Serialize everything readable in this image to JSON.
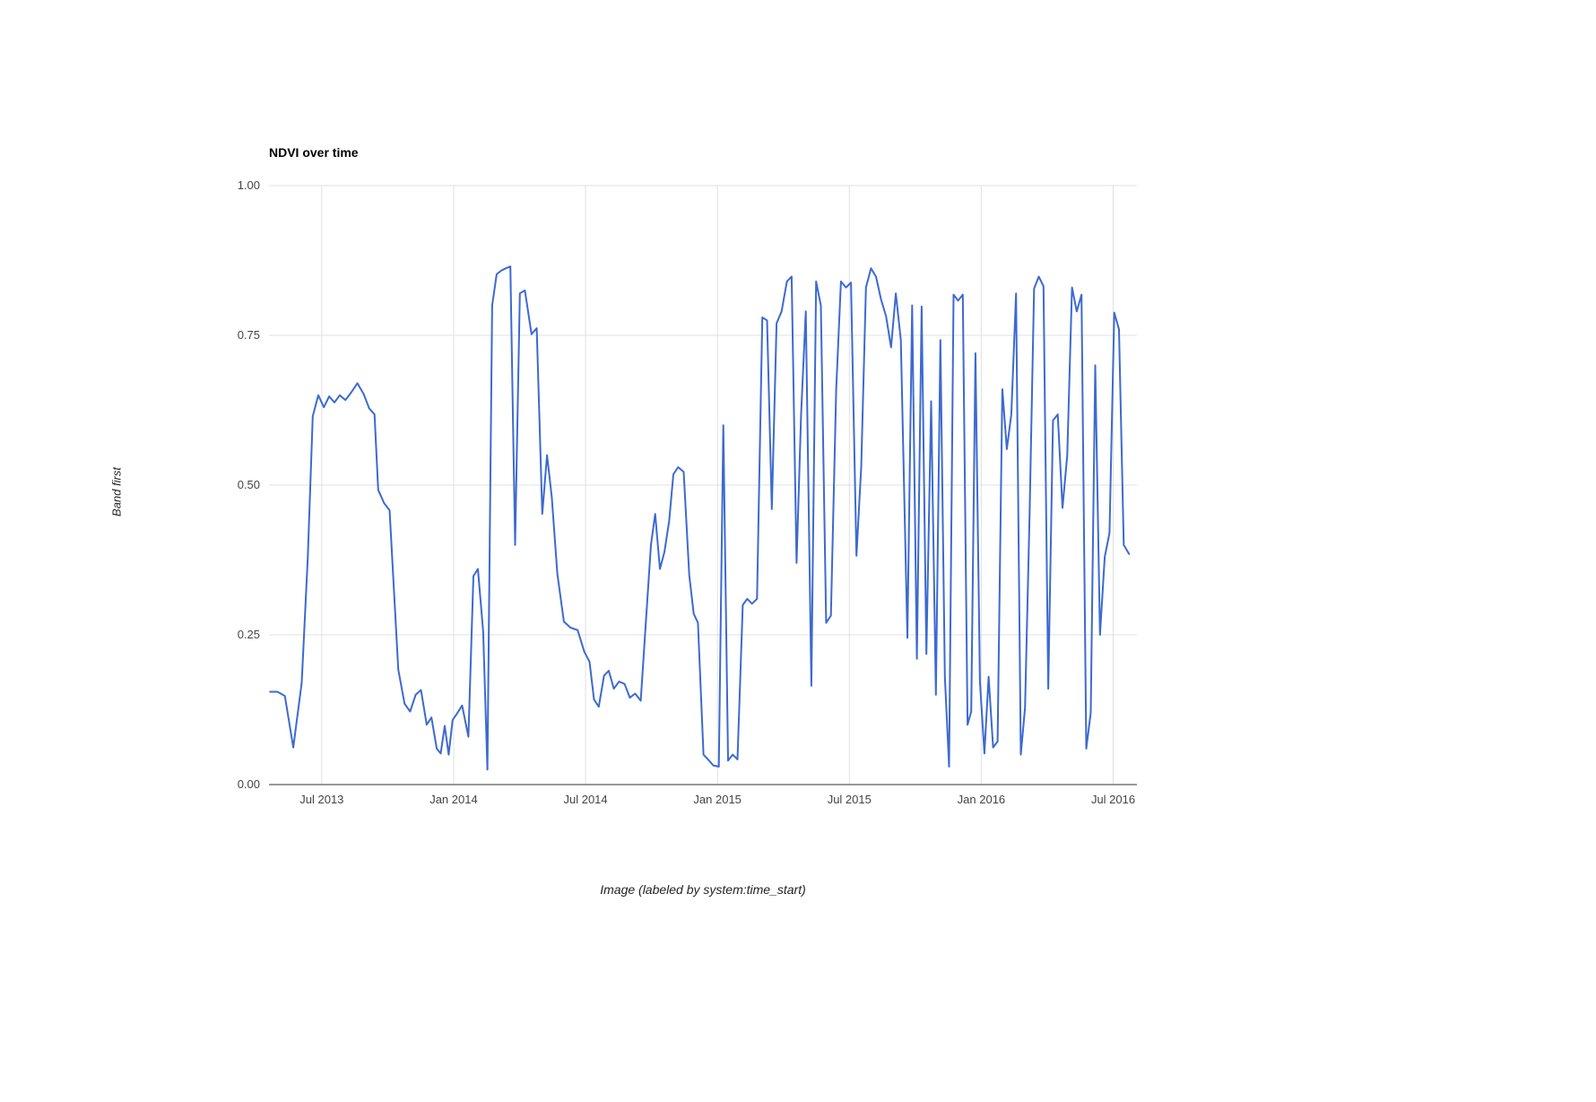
{
  "header": {
    "title": "NDVI over time"
  },
  "axes": {
    "y_title": "Band first",
    "x_title": "Image (labeled by system:time_start)"
  },
  "colors": {
    "line": "#3d6ad0",
    "grid": "#e0e0e0",
    "baseline": "#333333",
    "tick_text": "#444444",
    "background": "#ffffff"
  },
  "chart_data": {
    "type": "line",
    "title": "NDVI over time",
    "xlabel": "Image (labeled by system:time_start)",
    "ylabel": "Band first",
    "legend": "none",
    "grid": true,
    "xlim": [
      2013.3,
      2016.59
    ],
    "ylim": [
      0,
      1
    ],
    "x_ticks": [
      {
        "t": 2013.5,
        "label": "Jul 2013"
      },
      {
        "t": 2014.0,
        "label": "Jan 2014"
      },
      {
        "t": 2014.5,
        "label": "Jul 2014"
      },
      {
        "t": 2015.0,
        "label": "Jan 2015"
      },
      {
        "t": 2015.5,
        "label": "Jul 2015"
      },
      {
        "t": 2016.0,
        "label": "Jan 2016"
      },
      {
        "t": 2016.5,
        "label": "Jul 2016"
      }
    ],
    "y_ticks": [
      {
        "v": 0.0,
        "label": "0.00"
      },
      {
        "v": 0.25,
        "label": "0.25"
      },
      {
        "v": 0.5,
        "label": "0.50"
      },
      {
        "v": 0.75,
        "label": "0.75"
      },
      {
        "v": 1.0,
        "label": "1.00"
      }
    ],
    "series": [
      {
        "name": "first",
        "color": "#3d6ad0",
        "points": [
          [
            2013.304,
            0.155
          ],
          [
            2013.332,
            0.155
          ],
          [
            2013.36,
            0.148
          ],
          [
            2013.392,
            0.062
          ],
          [
            2013.424,
            0.17
          ],
          [
            2013.447,
            0.38
          ],
          [
            2013.466,
            0.615
          ],
          [
            2013.487,
            0.65
          ],
          [
            2013.508,
            0.63
          ],
          [
            2013.528,
            0.648
          ],
          [
            2013.548,
            0.638
          ],
          [
            2013.568,
            0.65
          ],
          [
            2013.59,
            0.642
          ],
          [
            2013.612,
            0.655
          ],
          [
            2013.635,
            0.67
          ],
          [
            2013.659,
            0.652
          ],
          [
            2013.68,
            0.628
          ],
          [
            2013.7,
            0.618
          ],
          [
            2013.714,
            0.492
          ],
          [
            2013.736,
            0.47
          ],
          [
            2013.757,
            0.458
          ],
          [
            2013.79,
            0.192
          ],
          [
            2013.814,
            0.135
          ],
          [
            2013.835,
            0.122
          ],
          [
            2013.856,
            0.15
          ],
          [
            2013.876,
            0.158
          ],
          [
            2013.898,
            0.1
          ],
          [
            2013.916,
            0.112
          ],
          [
            2013.936,
            0.06
          ],
          [
            2013.951,
            0.052
          ],
          [
            2013.966,
            0.098
          ],
          [
            2013.981,
            0.05
          ],
          [
            2013.996,
            0.108
          ],
          [
            2014.012,
            0.118
          ],
          [
            2014.032,
            0.132
          ],
          [
            2014.056,
            0.08
          ],
          [
            2014.075,
            0.348
          ],
          [
            2014.092,
            0.36
          ],
          [
            2014.112,
            0.255
          ],
          [
            2014.128,
            0.025
          ],
          [
            2014.146,
            0.8
          ],
          [
            2014.163,
            0.852
          ],
          [
            2014.18,
            0.858
          ],
          [
            2014.198,
            0.862
          ],
          [
            2014.215,
            0.865
          ],
          [
            2014.233,
            0.4
          ],
          [
            2014.251,
            0.82
          ],
          [
            2014.27,
            0.825
          ],
          [
            2014.295,
            0.752
          ],
          [
            2014.315,
            0.762
          ],
          [
            2014.336,
            0.452
          ],
          [
            2014.354,
            0.55
          ],
          [
            2014.372,
            0.48
          ],
          [
            2014.393,
            0.352
          ],
          [
            2014.418,
            0.272
          ],
          [
            2014.443,
            0.262
          ],
          [
            2014.47,
            0.258
          ],
          [
            2014.495,
            0.222
          ],
          [
            2014.515,
            0.205
          ],
          [
            2014.532,
            0.142
          ],
          [
            2014.55,
            0.13
          ],
          [
            2014.57,
            0.182
          ],
          [
            2014.588,
            0.19
          ],
          [
            2014.607,
            0.16
          ],
          [
            2014.627,
            0.172
          ],
          [
            2014.648,
            0.168
          ],
          [
            2014.668,
            0.145
          ],
          [
            2014.688,
            0.152
          ],
          [
            2014.709,
            0.14
          ],
          [
            2014.73,
            0.28
          ],
          [
            2014.748,
            0.4
          ],
          [
            2014.764,
            0.452
          ],
          [
            2014.782,
            0.36
          ],
          [
            2014.799,
            0.388
          ],
          [
            2014.817,
            0.44
          ],
          [
            2014.833,
            0.518
          ],
          [
            2014.851,
            0.53
          ],
          [
            2014.872,
            0.522
          ],
          [
            2014.893,
            0.35
          ],
          [
            2014.91,
            0.285
          ],
          [
            2014.926,
            0.27
          ],
          [
            2014.947,
            0.05
          ],
          [
            2014.964,
            0.042
          ],
          [
            2014.984,
            0.032
          ],
          [
            2015.005,
            0.03
          ],
          [
            2015.022,
            0.6
          ],
          [
            2015.04,
            0.04
          ],
          [
            2015.058,
            0.05
          ],
          [
            2015.076,
            0.042
          ],
          [
            2015.096,
            0.3
          ],
          [
            2015.113,
            0.31
          ],
          [
            2015.131,
            0.302
          ],
          [
            2015.15,
            0.31
          ],
          [
            2015.17,
            0.78
          ],
          [
            2015.188,
            0.775
          ],
          [
            2015.206,
            0.46
          ],
          [
            2015.224,
            0.77
          ],
          [
            2015.243,
            0.79
          ],
          [
            2015.263,
            0.84
          ],
          [
            2015.281,
            0.848
          ],
          [
            2015.3,
            0.37
          ],
          [
            2015.317,
            0.62
          ],
          [
            2015.335,
            0.79
          ],
          [
            2015.356,
            0.165
          ],
          [
            2015.374,
            0.84
          ],
          [
            2015.392,
            0.8
          ],
          [
            2015.412,
            0.27
          ],
          [
            2015.43,
            0.282
          ],
          [
            2015.45,
            0.66
          ],
          [
            2015.468,
            0.84
          ],
          [
            2015.487,
            0.83
          ],
          [
            2015.506,
            0.838
          ],
          [
            2015.527,
            0.382
          ],
          [
            2015.545,
            0.53
          ],
          [
            2015.563,
            0.83
          ],
          [
            2015.582,
            0.862
          ],
          [
            2015.601,
            0.848
          ],
          [
            2015.62,
            0.81
          ],
          [
            2015.639,
            0.782
          ],
          [
            2015.658,
            0.73
          ],
          [
            2015.676,
            0.82
          ],
          [
            2015.695,
            0.742
          ],
          [
            2015.72,
            0.245
          ],
          [
            2015.738,
            0.8
          ],
          [
            2015.756,
            0.21
          ],
          [
            2015.774,
            0.798
          ],
          [
            2015.792,
            0.218
          ],
          [
            2015.81,
            0.64
          ],
          [
            2015.828,
            0.15
          ],
          [
            2015.845,
            0.742
          ],
          [
            2015.862,
            0.18
          ],
          [
            2015.878,
            0.03
          ],
          [
            2015.895,
            0.818
          ],
          [
            2015.912,
            0.808
          ],
          [
            2015.93,
            0.818
          ],
          [
            2015.948,
            0.1
          ],
          [
            2015.962,
            0.122
          ],
          [
            2015.978,
            0.72
          ],
          [
            2015.995,
            0.172
          ],
          [
            2016.012,
            0.052
          ],
          [
            2016.028,
            0.18
          ],
          [
            2016.045,
            0.062
          ],
          [
            2016.062,
            0.072
          ],
          [
            2016.08,
            0.66
          ],
          [
            2016.097,
            0.56
          ],
          [
            2016.114,
            0.618
          ],
          [
            2016.132,
            0.82
          ],
          [
            2016.15,
            0.05
          ],
          [
            2016.166,
            0.128
          ],
          [
            2016.183,
            0.452
          ],
          [
            2016.2,
            0.828
          ],
          [
            2016.218,
            0.848
          ],
          [
            2016.236,
            0.832
          ],
          [
            2016.254,
            0.16
          ],
          [
            2016.272,
            0.608
          ],
          [
            2016.29,
            0.618
          ],
          [
            2016.308,
            0.462
          ],
          [
            2016.326,
            0.55
          ],
          [
            2016.344,
            0.83
          ],
          [
            2016.362,
            0.79
          ],
          [
            2016.38,
            0.818
          ],
          [
            2016.398,
            0.06
          ],
          [
            2016.415,
            0.12
          ],
          [
            2016.432,
            0.7
          ],
          [
            2016.45,
            0.25
          ],
          [
            2016.468,
            0.38
          ],
          [
            2016.486,
            0.42
          ],
          [
            2016.504,
            0.788
          ],
          [
            2016.522,
            0.76
          ],
          [
            2016.54,
            0.4
          ],
          [
            2016.56,
            0.385
          ]
        ]
      }
    ]
  }
}
